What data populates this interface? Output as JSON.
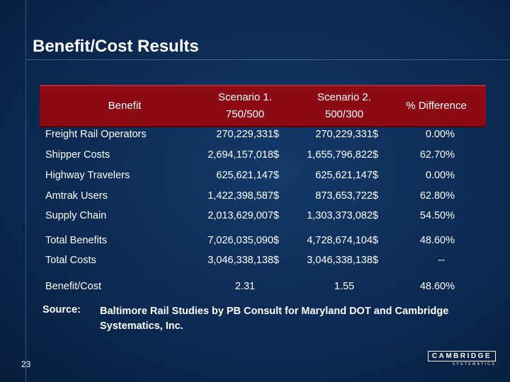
{
  "slide": {
    "title": "Benefit/Cost Results",
    "page_number": "23"
  },
  "table": {
    "headers": {
      "benefit": "Benefit",
      "scenario1_line1": "Scenario 1.",
      "scenario1_line2": "750/500",
      "scenario2_line1": "Scenario 2.",
      "scenario2_line2": "500/300",
      "difference": "% Difference"
    },
    "rows": [
      {
        "label": "Freight Rail Operators",
        "s1": "270,229,331$",
        "s2": "270,229,331$",
        "diff": "0.00%"
      },
      {
        "label": "Shipper Costs",
        "s1": "2,694,157,018$",
        "s2": "1,655,796,822$",
        "diff": "62.70%"
      },
      {
        "label": "Highway Travelers",
        "s1": "625,621,147$",
        "s2": "625,621,147$",
        "diff": "0.00%"
      },
      {
        "label": "Amtrak Users",
        "s1": "1,422,398,587$",
        "s2": "873,653,722$",
        "diff": "62.80%"
      },
      {
        "label": "Supply Chain",
        "s1": "2,013,629,007$",
        "s2": "1,303,373,082$",
        "diff": "54.50%"
      },
      {
        "label": "Total Benefits",
        "s1": "7,026,035,090$",
        "s2": "4,728,674,104$",
        "diff": "48.60%"
      },
      {
        "label": "Total Costs",
        "s1": "3,046,338,138$",
        "s2": "3,046,338,138$",
        "diff": "--"
      },
      {
        "label": "Benefit/Cost",
        "s1": "2.31",
        "s2": "1.55",
        "diff": "48.60%"
      }
    ]
  },
  "source": {
    "label": "Source:",
    "text": "Baltimore Rail Studies by PB Consult for Maryland DOT and Cambridge Systematics, Inc."
  },
  "logo": {
    "name": "CAMBRIDGE",
    "sub": "SYSTEMATICS"
  },
  "colors": {
    "background": "#0c2a52",
    "header_fill": "#8b0a14"
  }
}
